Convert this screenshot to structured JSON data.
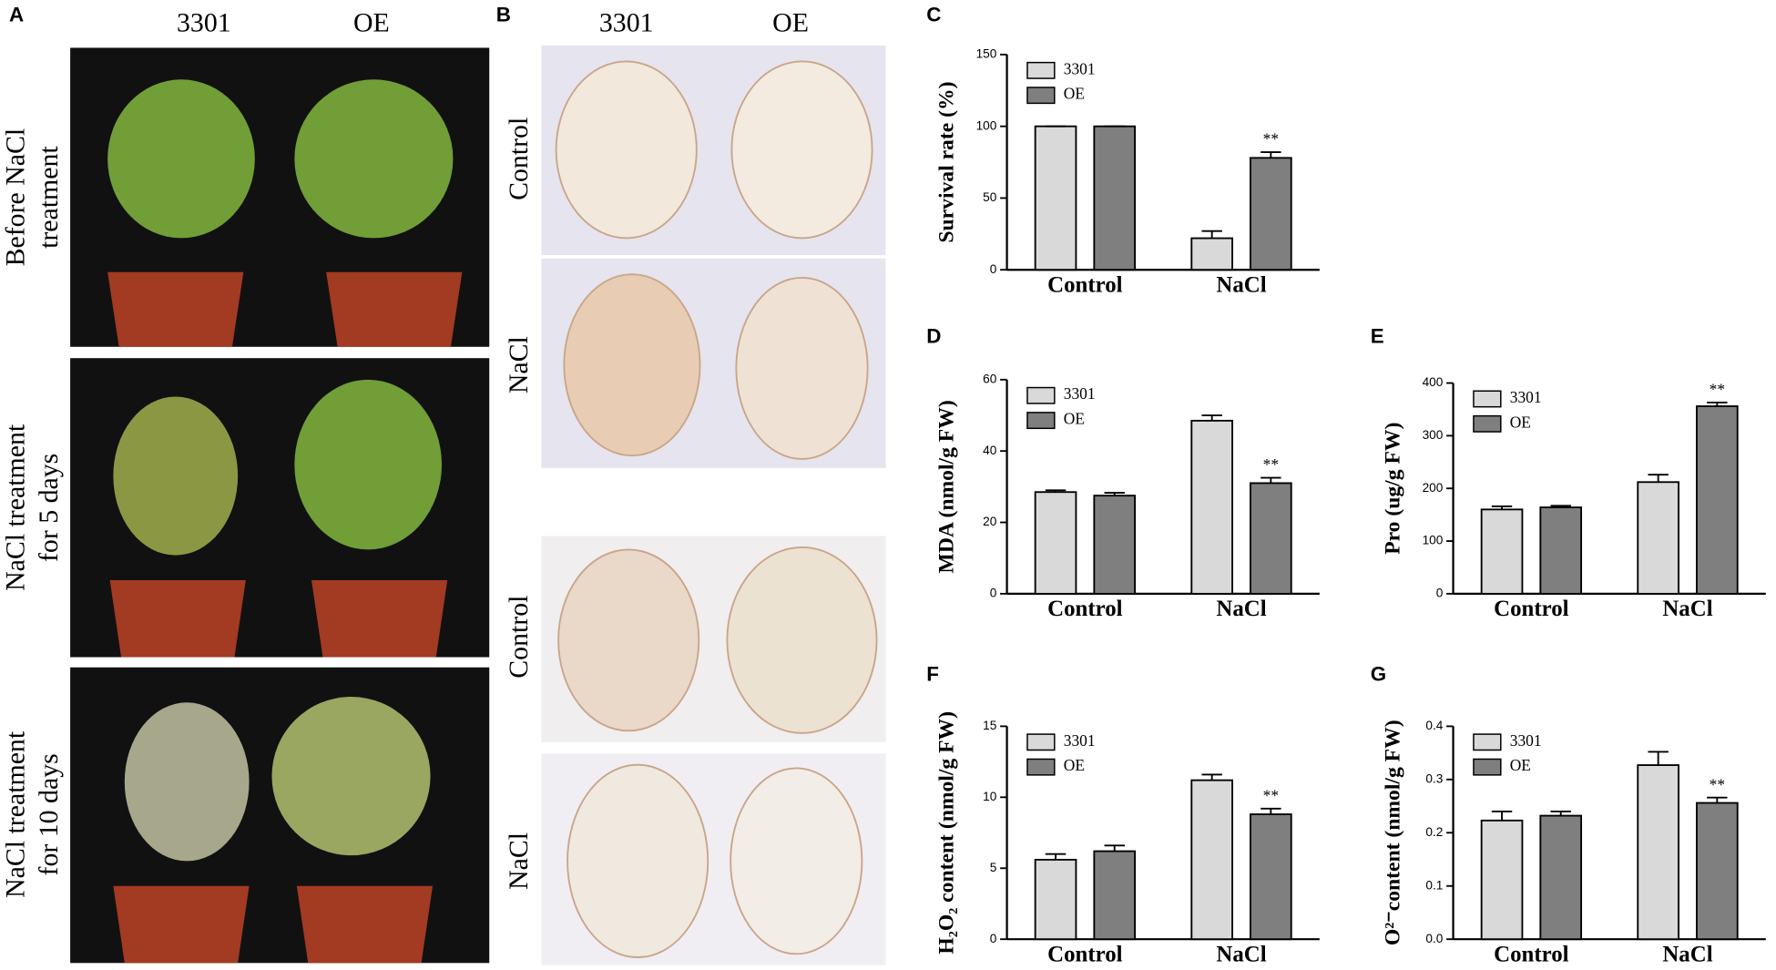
{
  "panel_a": {
    "label": "A",
    "columns": [
      "3301",
      "OE"
    ],
    "rows": [
      [
        "Before NaCl",
        "treatment"
      ],
      [
        "NaCl treatment",
        "for 5 days"
      ],
      [
        "NaCl treatment",
        "for 10 days"
      ]
    ]
  },
  "panel_b": {
    "label": "B",
    "columns": [
      "3301",
      "OE"
    ],
    "rows": [
      "Control",
      "NaCl",
      "Control",
      "NaCl"
    ]
  },
  "chart_data": [
    {
      "type": "bar",
      "label": "C",
      "ylabel": "Survival rate (%)",
      "categories": [
        "Control",
        "NaCl"
      ],
      "ylim": [
        0,
        150
      ],
      "yticks": [
        0,
        50,
        100,
        150
      ],
      "series": [
        {
          "name": "3301",
          "color": "#d9d9d9",
          "values": [
            100,
            22
          ],
          "errors": [
            0,
            5
          ],
          "significance": [
            null,
            null
          ]
        },
        {
          "name": "OE",
          "color": "#7f7f7f",
          "values": [
            100,
            78
          ],
          "errors": [
            0,
            4
          ],
          "significance": [
            null,
            "**"
          ]
        }
      ]
    },
    {
      "type": "bar",
      "label": "D",
      "ylabel": "MDA (nmol/g FW)",
      "categories": [
        "Control",
        "NaCl"
      ],
      "ylim": [
        0,
        60
      ],
      "yticks": [
        0,
        20,
        40,
        60
      ],
      "series": [
        {
          "name": "3301",
          "color": "#d9d9d9",
          "values": [
            28.5,
            48.5
          ],
          "errors": [
            0.5,
            1.5
          ],
          "significance": [
            null,
            null
          ]
        },
        {
          "name": "OE",
          "color": "#7f7f7f",
          "values": [
            27.5,
            31
          ],
          "errors": [
            0.8,
            1.5
          ],
          "significance": [
            null,
            "**"
          ]
        }
      ]
    },
    {
      "type": "bar",
      "label": "E",
      "ylabel": "Pro (ug/g FW)",
      "categories": [
        "Control",
        "NaCl"
      ],
      "ylim": [
        0,
        400
      ],
      "yticks": [
        0,
        100,
        200,
        300,
        400
      ],
      "series": [
        {
          "name": "3301",
          "color": "#d9d9d9",
          "values": [
            160,
            212
          ],
          "errors": [
            6,
            14
          ],
          "significance": [
            null,
            null
          ]
        },
        {
          "name": "OE",
          "color": "#7f7f7f",
          "values": [
            164,
            356
          ],
          "errors": [
            3,
            7
          ],
          "significance": [
            null,
            "**"
          ]
        }
      ]
    },
    {
      "type": "bar",
      "label": "F",
      "ylabel": "H₂O₂ content (nmol/g FW)",
      "categories": [
        "Control",
        "NaCl"
      ],
      "ylim": [
        0,
        15
      ],
      "yticks": [
        0,
        5,
        10,
        15
      ],
      "series": [
        {
          "name": "3301",
          "color": "#d9d9d9",
          "values": [
            5.6,
            11.2
          ],
          "errors": [
            0.4,
            0.4
          ],
          "significance": [
            null,
            null
          ]
        },
        {
          "name": "OE",
          "color": "#7f7f7f",
          "values": [
            6.2,
            8.8
          ],
          "errors": [
            0.4,
            0.4
          ],
          "significance": [
            null,
            "**"
          ]
        }
      ]
    },
    {
      "type": "bar",
      "label": "G",
      "ylabel": "O²⁻content (nmol/g FW)",
      "categories": [
        "Control",
        "NaCl"
      ],
      "ylim": [
        0,
        0.4
      ],
      "yticks": [
        {
          "value": 0,
          "label": "0.0"
        },
        0.1,
        0.2,
        0.3,
        0.4
      ],
      "series": [
        {
          "name": "3301",
          "color": "#d9d9d9",
          "values": [
            0.223,
            0.327
          ],
          "errors": [
            0.017,
            0.025
          ],
          "significance": [
            null,
            null
          ]
        },
        {
          "name": "OE",
          "color": "#7f7f7f",
          "values": [
            0.232,
            0.256
          ],
          "errors": [
            0.008,
            0.01
          ],
          "significance": [
            null,
            "**"
          ]
        }
      ]
    }
  ]
}
